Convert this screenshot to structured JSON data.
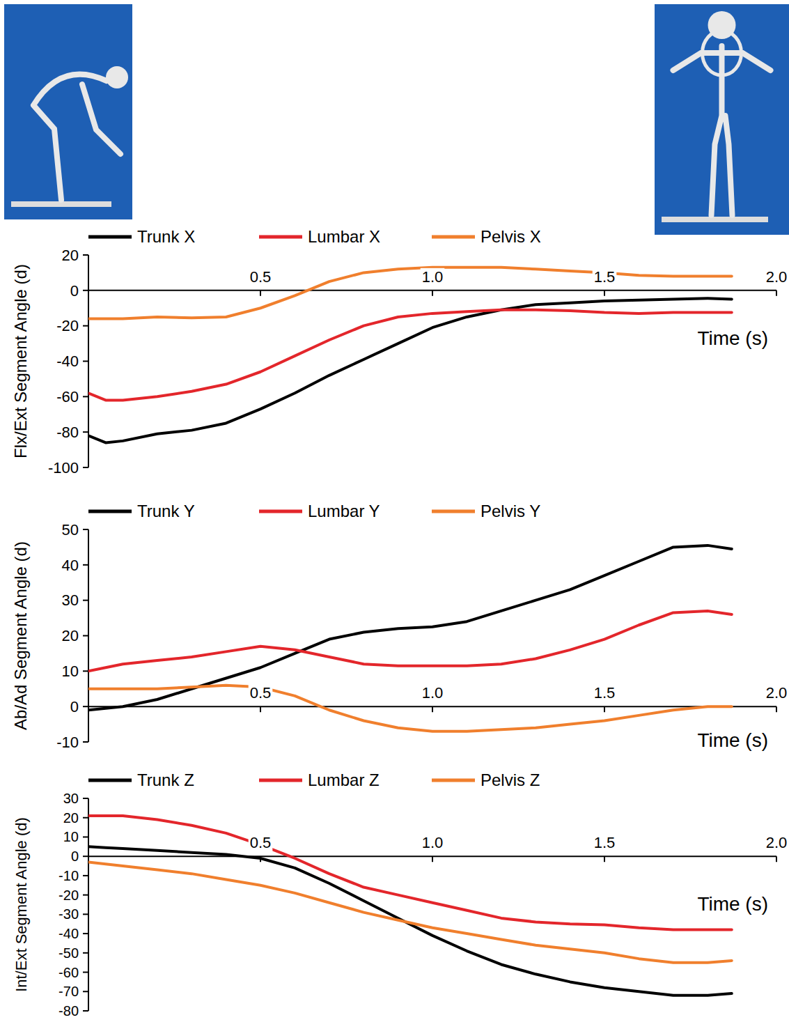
{
  "chart_data": [
    {
      "type": "line",
      "y_label": "Flx/Ext Segment Angle (d)",
      "x_label": "Time (s)",
      "x": [
        0,
        0.05,
        0.1,
        0.2,
        0.3,
        0.4,
        0.5,
        0.6,
        0.7,
        0.8,
        0.9,
        1.0,
        1.1,
        1.2,
        1.3,
        1.4,
        1.5,
        1.6,
        1.7,
        1.8,
        1.87
      ],
      "series": [
        {
          "name": "Trunk X",
          "color": "#000000",
          "values": [
            -82,
            -86,
            -85,
            -81,
            -79,
            -75,
            -67,
            -58,
            -48,
            -39,
            -30,
            -21,
            -15,
            -11,
            -8,
            -7,
            -6,
            -5.5,
            -5,
            -4.5,
            -5
          ]
        },
        {
          "name": "Lumbar X",
          "color": "#e3262b",
          "values": [
            -58,
            -62,
            -62,
            -60,
            -57,
            -53,
            -46,
            -37,
            -28,
            -20,
            -15,
            -13,
            -12,
            -11,
            -11,
            -11.5,
            -12.5,
            -13,
            -12.5,
            -12.5,
            -12.5
          ]
        },
        {
          "name": "Pelvis X",
          "color": "#f07f2d",
          "values": [
            -16,
            -16,
            -16,
            -15,
            -15.5,
            -15,
            -10,
            -3,
            5,
            10,
            12,
            13,
            13,
            13,
            12,
            11,
            10,
            8.5,
            8,
            8,
            8
          ]
        }
      ],
      "xlim": [
        0,
        2
      ],
      "xticks": [
        0.5,
        {
          "value": 1,
          "label": "1.0"
        },
        1.5,
        {
          "value": 2,
          "label": "2.0"
        }
      ],
      "ylim": [
        -100,
        20
      ],
      "yticks": [
        -100,
        -80,
        -60,
        -40,
        -20,
        0,
        20
      ],
      "legend": "top"
    },
    {
      "type": "line",
      "y_label": "Ab/Ad Segment Angle (d)",
      "x_label": "Time (s)",
      "x": [
        0,
        0.05,
        0.1,
        0.2,
        0.3,
        0.4,
        0.5,
        0.6,
        0.7,
        0.8,
        0.9,
        1.0,
        1.1,
        1.2,
        1.3,
        1.4,
        1.5,
        1.6,
        1.7,
        1.8,
        1.87
      ],
      "series": [
        {
          "name": "Trunk Y",
          "color": "#000000",
          "values": [
            -1,
            -0.5,
            0,
            2,
            5,
            8,
            11,
            15,
            19,
            21,
            22,
            22.5,
            24,
            27,
            30,
            33,
            37,
            41,
            45,
            45.5,
            44.5
          ]
        },
        {
          "name": "Lumbar Y",
          "color": "#e3262b",
          "values": [
            10,
            11,
            12,
            13,
            14,
            15.5,
            17,
            16,
            14,
            12,
            11.5,
            11.5,
            11.5,
            12,
            13.5,
            16,
            19,
            23,
            26.5,
            27,
            26
          ]
        },
        {
          "name": "Pelvis Y",
          "color": "#f07f2d",
          "values": [
            5,
            5,
            5,
            5,
            5.5,
            6,
            5.5,
            3,
            -1,
            -4,
            -6,
            -7,
            -7,
            -6.5,
            -6,
            -5,
            -4,
            -2.5,
            -1,
            0,
            0
          ]
        }
      ],
      "xlim": [
        0,
        2
      ],
      "xticks": [
        0.5,
        {
          "value": 1,
          "label": "1.0"
        },
        1.5,
        {
          "value": 2,
          "label": "2.0"
        }
      ],
      "ylim": [
        -10,
        50
      ],
      "yticks": [
        -10,
        0,
        10,
        20,
        30,
        40,
        50
      ],
      "legend": "top"
    },
    {
      "type": "line",
      "y_label": "Int/Ext Segment Angle (d)",
      "x_label": "Time (s)",
      "x": [
        0,
        0.05,
        0.1,
        0.2,
        0.3,
        0.4,
        0.5,
        0.6,
        0.7,
        0.8,
        0.9,
        1.0,
        1.1,
        1.2,
        1.3,
        1.4,
        1.5,
        1.6,
        1.7,
        1.8,
        1.87
      ],
      "series": [
        {
          "name": "Trunk Z",
          "color": "#000000",
          "values": [
            5,
            4.5,
            4,
            3,
            2,
            1,
            -1,
            -6,
            -14,
            -23,
            -32,
            -41,
            -49,
            -56,
            -61,
            -65,
            -68,
            -70,
            -72,
            -72,
            -71
          ]
        },
        {
          "name": "Lumbar Z",
          "color": "#e3262b",
          "values": [
            21,
            21,
            21,
            19,
            16,
            12,
            6,
            -1,
            -9,
            -16,
            -20,
            -24,
            -28,
            -32,
            -34,
            -35,
            -35.5,
            -37,
            -38,
            -38,
            -38
          ]
        },
        {
          "name": "Pelvis Z",
          "color": "#f07f2d",
          "values": [
            -3,
            -4,
            -5,
            -7,
            -9,
            -12,
            -15,
            -19,
            -24,
            -29,
            -33,
            -37,
            -40,
            -43,
            -46,
            -48,
            -50,
            -53,
            -55,
            -55,
            -54
          ]
        }
      ],
      "xlim": [
        0,
        2
      ],
      "xticks": [
        0.5,
        {
          "value": 1,
          "label": "1.0"
        },
        1.5,
        {
          "value": 2,
          "label": "2.0"
        }
      ],
      "ylim": [
        -80,
        30
      ],
      "yticks": [
        -80,
        -70,
        -60,
        -50,
        -40,
        -30,
        -20,
        -10,
        0,
        10,
        20,
        30
      ],
      "legend": "top"
    }
  ]
}
